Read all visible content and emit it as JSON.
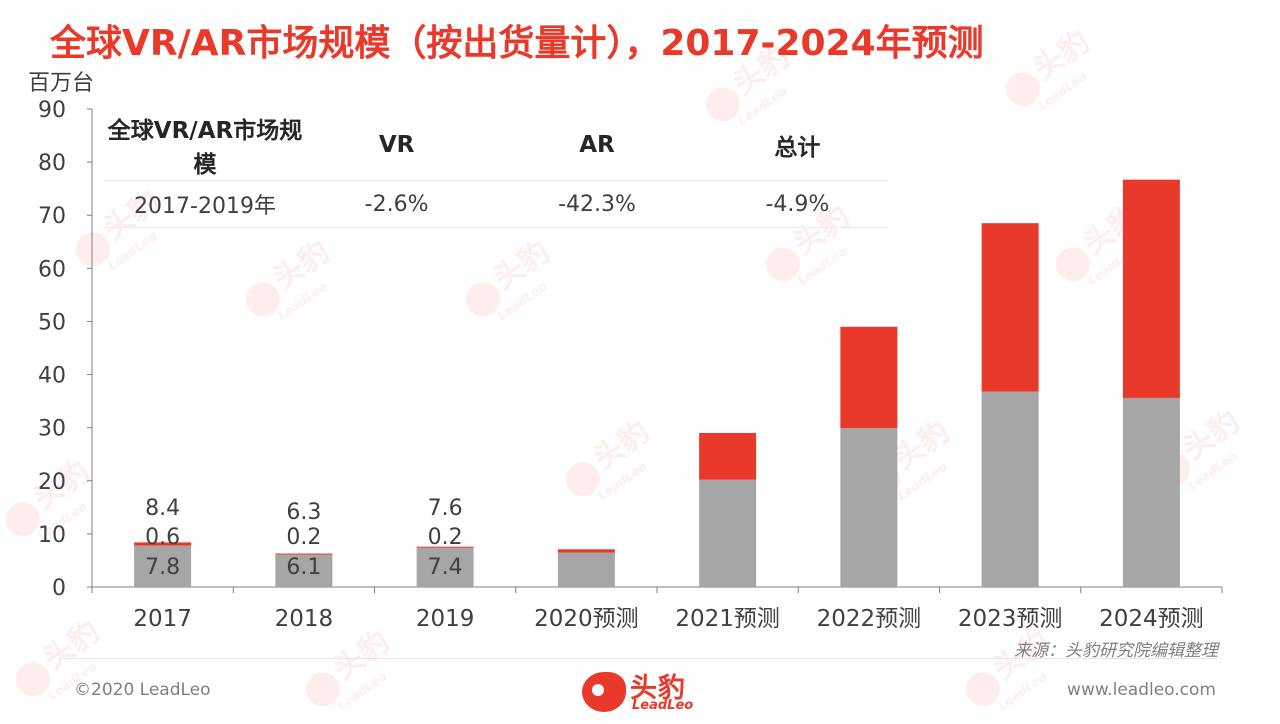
{
  "title": "全球VR/AR市场规模（按出货量计），2017-2024年预测",
  "y_unit": "百万台",
  "table": {
    "headers": [
      "全球VR/AR市场规模",
      "VR",
      "AR",
      "总计"
    ],
    "rows": [
      [
        "2017-2019年",
        "-2.6%",
        "-42.3%",
        "-4.9%"
      ]
    ]
  },
  "chart_data": {
    "type": "bar",
    "stacked": true,
    "categories": [
      "2017",
      "2018",
      "2019",
      "2020预测",
      "2021预测",
      "2022预测",
      "2023预测",
      "2024预测"
    ],
    "series": [
      {
        "name": "VR",
        "color": "#a6a6a6",
        "values": [
          7.8,
          6.1,
          7.4,
          6.5,
          20.2,
          29.9,
          36.8,
          35.6
        ]
      },
      {
        "name": "AR",
        "color": "#e8392b",
        "values": [
          0.6,
          0.2,
          0.2,
          0.6,
          8.8,
          19.1,
          31.7,
          41.1
        ]
      }
    ],
    "labels": {
      "totals": [
        "8.4",
        "6.3",
        "7.6",
        "",
        "",
        "",
        "",
        ""
      ],
      "ar": [
        "0.6",
        "0.2",
        "0.2",
        "",
        "",
        "",
        "",
        ""
      ],
      "vr": [
        "7.8",
        "6.1",
        "7.4",
        "",
        "",
        "",
        "",
        ""
      ]
    },
    "ylim": [
      0,
      90
    ],
    "yticks": [
      0,
      10,
      20,
      30,
      40,
      50,
      60,
      70,
      80,
      90
    ],
    "title": "全球VR/AR市场规模（按出货量计），2017-2024年预测",
    "xlabel": "",
    "ylabel": "百万台",
    "grid": false
  },
  "source": "来源：头豹研究院编辑整理",
  "footer": {
    "copyright": "©2020 LeadLeo",
    "website": "www.leadleo.com"
  },
  "logo": {
    "cn": "头豹",
    "en": "LeadLeo"
  },
  "watermark": {
    "cn": "头豹",
    "en": "LeadLeo"
  }
}
